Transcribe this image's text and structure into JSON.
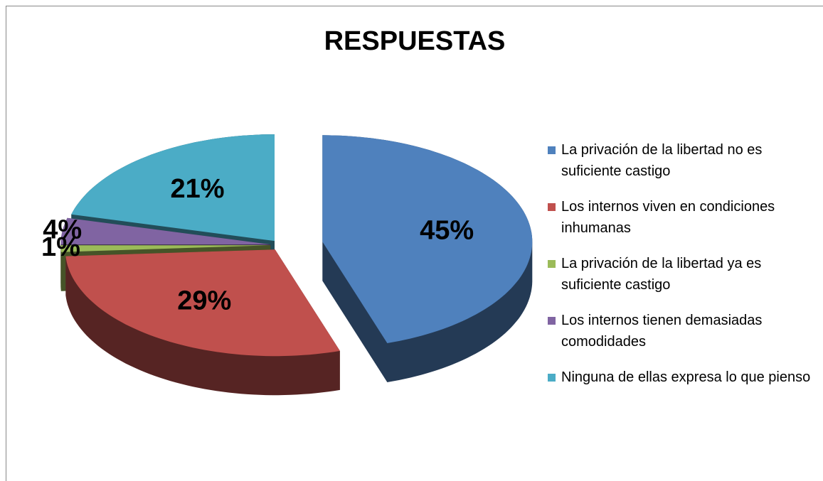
{
  "chart_data": {
    "type": "pie",
    "title": "RESPUESTAS",
    "categories": [
      "La privación de la libertad no es suficiente castigo",
      "Los internos viven en condiciones inhumanas",
      "La privación de la libertad ya es suficiente castigo",
      "Los internos tienen demasiadas comodidades",
      "Ninguna de ellas expresa lo que pienso"
    ],
    "values": [
      45,
      29,
      1,
      4,
      21
    ],
    "value_labels": [
      "45%",
      "29%",
      "1%",
      "4%",
      "21%"
    ],
    "colors": [
      "#4f81bd",
      "#c0504d",
      "#9bbb59",
      "#8064a2",
      "#4bacc6"
    ],
    "legend": "right"
  }
}
